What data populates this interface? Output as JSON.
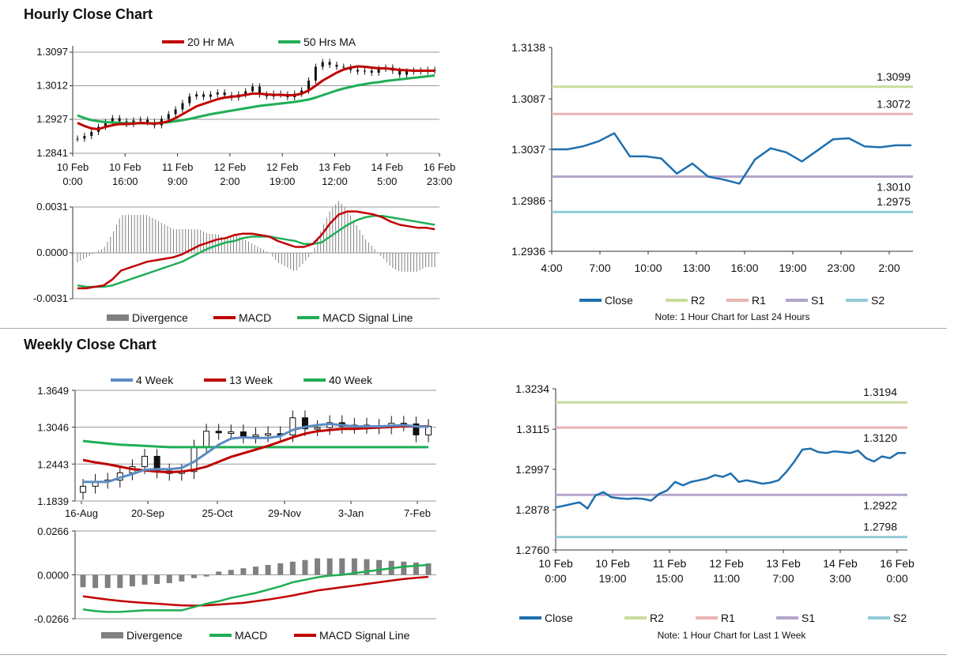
{
  "titles": {
    "hourly": "Hourly Close Chart",
    "weekly": "Weekly Close Chart"
  },
  "colors": {
    "ma20": "#c00000",
    "ma50": "#1fae55",
    "w4": "#5b8cc4",
    "w13": "#c00000",
    "w40": "#1fae55",
    "close": "#1f6fae",
    "r2": "#c8dc9a",
    "r1": "#eab3b3",
    "s1": "#b3a5cc",
    "s2": "#92cbd8",
    "div": "#808080",
    "macd_h": "#c00000",
    "sig_h": "#1fae55",
    "macd_w": "#1fae55",
    "sig_w": "#c00000",
    "grid": "#9a9a9a"
  },
  "chart_data": [
    {
      "id": "hourly_price",
      "type": "candlestick",
      "legend": [
        "20 Hr MA",
        "50 Hrs MA"
      ],
      "yticks": [
        "1.3097",
        "1.3012",
        "1.2927",
        "1.2841"
      ],
      "ylim": [
        1.2841,
        1.3097
      ],
      "xticks": [
        [
          "10 Feb",
          "0:00"
        ],
        [
          "10 Feb",
          "16:00"
        ],
        [
          "11 Feb",
          "9:00"
        ],
        [
          "12 Feb",
          "2:00"
        ],
        [
          "12 Feb",
          "19:00"
        ],
        [
          "13 Feb",
          "12:00"
        ],
        [
          "14 Feb",
          "5:00"
        ],
        [
          "16 Feb",
          "23:00"
        ]
      ],
      "close": [
        1.2878,
        1.2885,
        1.2895,
        1.2908,
        1.292,
        1.293,
        1.2922,
        1.2915,
        1.2924,
        1.2926,
        1.292,
        1.2912,
        1.2928,
        1.294,
        1.2952,
        1.2968,
        1.2985,
        1.299,
        1.2984,
        1.299,
        1.2995,
        1.2988,
        1.2982,
        1.299,
        1.2998,
        1.301,
        1.299,
        1.2985,
        1.2992,
        1.299,
        1.2983,
        1.2992,
        1.3,
        1.3025,
        1.306,
        1.3072,
        1.3065,
        1.306,
        1.3058,
        1.3052,
        1.3048,
        1.305,
        1.3045,
        1.3055,
        1.3058,
        1.305,
        1.304,
        1.3048,
        1.305,
        1.3048,
        1.3052,
        1.305
      ],
      "ma20": [
        1.2918,
        1.291,
        1.2904,
        1.2902,
        1.2908,
        1.2912,
        1.2915,
        1.2915,
        1.2916,
        1.2918,
        1.2917,
        1.2916,
        1.2918,
        1.2922,
        1.293,
        1.294,
        1.295,
        1.296,
        1.2966,
        1.2972,
        1.2978,
        1.2982,
        1.2984,
        1.2986,
        1.2989,
        1.2992,
        1.2992,
        1.299,
        1.2989,
        1.2989,
        1.2988,
        1.2988,
        1.2992,
        1.3,
        1.3012,
        1.3025,
        1.3035,
        1.3045,
        1.3053,
        1.3058,
        1.3061,
        1.306,
        1.3058,
        1.3056,
        1.3056,
        1.3054,
        1.3052,
        1.3051,
        1.305,
        1.305,
        1.305,
        1.305
      ],
      "ma50": [
        1.2937,
        1.293,
        1.2925,
        1.2922,
        1.292,
        1.2919,
        1.2918,
        1.2917,
        1.2917,
        1.2917,
        1.2917,
        1.2917,
        1.2918,
        1.292,
        1.2922,
        1.2925,
        1.2928,
        1.2932,
        1.2936,
        1.294,
        1.2943,
        1.2946,
        1.2949,
        1.2952,
        1.2955,
        1.2958,
        1.2961,
        1.2963,
        1.2965,
        1.2967,
        1.2969,
        1.2971,
        1.2974,
        1.2977,
        1.2982,
        1.2988,
        1.2994,
        1.3,
        1.3005,
        1.3009,
        1.3013,
        1.3016,
        1.3019,
        1.3021,
        1.3024,
        1.3026,
        1.3028,
        1.303,
        1.3032,
        1.3034,
        1.3036,
        1.3038
      ]
    },
    {
      "id": "hourly_macd",
      "type": "bar+line",
      "legend": [
        "Divergence",
        "MACD",
        "MACD Signal Line"
      ],
      "yticks": [
        "0.0031",
        "0.0000",
        "-0.0031"
      ],
      "ylim": [
        -0.0031,
        0.0031
      ],
      "macd": [
        -0.0024,
        -0.0024,
        -0.0023,
        -0.0022,
        -0.0018,
        -0.0012,
        -0.001,
        -0.0008,
        -0.0006,
        -0.0005,
        -0.0004,
        -0.0003,
        -0.0001,
        0.0002,
        0.0005,
        0.0007,
        0.0009,
        0.001,
        0.0012,
        0.0013,
        0.0013,
        0.0012,
        0.0011,
        0.0008,
        0.0006,
        0.0004,
        0.0004,
        0.0006,
        0.0012,
        0.002,
        0.0026,
        0.0028,
        0.0028,
        0.0027,
        0.0026,
        0.0024,
        0.0021,
        0.0019,
        0.0018,
        0.0017,
        0.0017,
        0.0016
      ],
      "signal": [
        -0.0022,
        -0.0023,
        -0.0023,
        -0.0023,
        -0.0022,
        -0.002,
        -0.0018,
        -0.0016,
        -0.0014,
        -0.0012,
        -0.001,
        -0.0008,
        -0.0006,
        -0.0003,
        0.0,
        0.0003,
        0.0005,
        0.0007,
        0.0008,
        0.001,
        0.0011,
        0.0011,
        0.0011,
        0.001,
        0.0009,
        0.0008,
        0.0006,
        0.0006,
        0.0007,
        0.0011,
        0.0015,
        0.0019,
        0.0022,
        0.0024,
        0.0025,
        0.0025,
        0.0024,
        0.0023,
        0.0022,
        0.0021,
        0.002,
        0.0019
      ]
    },
    {
      "id": "hourly_close",
      "type": "line",
      "legend": [
        "Close",
        "R2",
        "R1",
        "S1",
        "S2"
      ],
      "note": "Note: 1 Hour Chart for Last 24 Hours",
      "yticks": [
        "1.3138",
        "1.3087",
        "1.3037",
        "1.2986",
        "1.2936"
      ],
      "ylim": [
        1.2936,
        1.3138
      ],
      "xticks": [
        "4:00",
        "7:00",
        "10:00",
        "13:00",
        "16:00",
        "19:00",
        "23:00",
        "2:00"
      ],
      "close": [
        1.3037,
        1.3037,
        1.304,
        1.3045,
        1.3053,
        1.303,
        1.303,
        1.3028,
        1.3013,
        1.3023,
        1.301,
        1.3007,
        1.3003,
        1.3027,
        1.3038,
        1.3034,
        1.3025,
        1.3036,
        1.3047,
        1.3048,
        1.304,
        1.3039,
        1.3041,
        1.3041
      ],
      "levels": {
        "R2": "1.3099",
        "R1": "1.3072",
        "S1": "1.3010",
        "S2": "1.2975"
      }
    },
    {
      "id": "weekly_price",
      "type": "candlestick",
      "legend": [
        "4 Week",
        "13 Week",
        "40 Week"
      ],
      "yticks": [
        "1.3649",
        "1.3046",
        "1.2443",
        "1.1839"
      ],
      "ylim": [
        1.1839,
        1.3649
      ],
      "xticks": [
        "16-Aug",
        "20-Sep",
        "25-Oct",
        "29-Nov",
        "3-Jan",
        "7-Feb"
      ],
      "close": [
        1.208,
        1.216,
        1.218,
        1.23,
        1.24,
        1.257,
        1.233,
        1.229,
        1.232,
        1.272,
        1.298,
        1.296,
        1.297,
        1.29,
        1.292,
        1.294,
        1.292,
        1.32,
        1.302,
        1.304,
        1.312,
        1.306,
        1.308,
        1.306,
        1.305,
        1.311,
        1.31,
        1.292,
        1.306
      ],
      "w4": [
        1.215,
        1.215,
        1.215,
        1.222,
        1.228,
        1.235,
        1.236,
        1.236,
        1.238,
        1.248,
        1.262,
        1.276,
        1.286,
        1.288,
        1.287,
        1.287,
        1.29,
        1.3,
        1.305,
        1.308,
        1.31,
        1.308,
        1.306,
        1.306,
        1.306,
        1.307,
        1.308,
        1.306,
        1.305
      ],
      "w13": [
        1.251,
        1.247,
        1.244,
        1.24,
        1.236,
        1.234,
        1.232,
        1.231,
        1.232,
        1.235,
        1.24,
        1.248,
        1.256,
        1.262,
        1.268,
        1.274,
        1.281,
        1.288,
        1.294,
        1.298,
        1.3,
        1.302,
        1.302,
        1.303,
        1.304,
        1.305,
        1.306,
        1.306,
        1.306
      ],
      "w40": [
        1.282,
        1.28,
        1.278,
        1.276,
        1.275,
        1.274,
        1.273,
        1.272,
        1.272,
        1.272,
        1.272,
        1.272,
        1.272,
        1.272,
        1.272,
        1.272,
        1.272,
        1.272,
        1.272,
        1.272,
        1.272,
        1.272,
        1.272,
        1.272,
        1.272,
        1.272,
        1.272,
        1.272,
        1.272
      ]
    },
    {
      "id": "weekly_macd",
      "type": "bar+line",
      "legend": [
        "Divergence",
        "MACD",
        "MACD Signal Line"
      ],
      "yticks": [
        "0.0266",
        "0.0000",
        "-0.0266"
      ],
      "ylim": [
        -0.0266,
        0.0266
      ],
      "div": [
        -0.0075,
        -0.008,
        -0.008,
        -0.008,
        -0.007,
        -0.006,
        -0.0055,
        -0.005,
        -0.004,
        -0.002,
        -0.001,
        0.002,
        0.003,
        0.004,
        0.005,
        0.006,
        0.007,
        0.008,
        0.009,
        0.01,
        0.01,
        0.01,
        0.01,
        0.0095,
        0.009,
        0.0085,
        0.008,
        0.0075,
        0.007
      ],
      "macd": [
        -0.021,
        -0.022,
        -0.0225,
        -0.0225,
        -0.022,
        -0.0215,
        -0.0215,
        -0.0215,
        -0.0215,
        -0.0195,
        -0.0175,
        -0.016,
        -0.014,
        -0.0125,
        -0.011,
        -0.009,
        -0.007,
        -0.0045,
        -0.003,
        -0.0015,
        -0.0005,
        0.0,
        0.001,
        0.002,
        0.003,
        0.004,
        0.005,
        0.0055,
        0.006
      ],
      "signal": [
        -0.013,
        -0.014,
        -0.015,
        -0.0158,
        -0.0165,
        -0.017,
        -0.0175,
        -0.018,
        -0.0185,
        -0.0187,
        -0.0185,
        -0.018,
        -0.0175,
        -0.017,
        -0.016,
        -0.015,
        -0.0138,
        -0.0125,
        -0.011,
        -0.0095,
        -0.0085,
        -0.0075,
        -0.0065,
        -0.0055,
        -0.0045,
        -0.0035,
        -0.0025,
        -0.0018,
        -0.0012
      ]
    },
    {
      "id": "weekly_close",
      "type": "line",
      "legend": [
        "Close",
        "R2",
        "R1",
        "S1",
        "S2"
      ],
      "note": "Note: 1 Hour Chart for Last 1 Week",
      "yticks": [
        "1.3234",
        "1.3115",
        "1.2997",
        "1.2878",
        "1.2760"
      ],
      "ylim": [
        1.276,
        1.3234
      ],
      "xticks": [
        [
          "10 Feb",
          "0:00"
        ],
        [
          "10 Feb",
          "19:00"
        ],
        [
          "11 Feb",
          "15:00"
        ],
        [
          "12 Feb",
          "11:00"
        ],
        [
          "13 Feb",
          "7:00"
        ],
        [
          "14 Feb",
          "3:00"
        ],
        [
          "16 Feb",
          "0:00"
        ]
      ],
      "close": [
        1.2885,
        1.289,
        1.2895,
        1.29,
        1.2882,
        1.292,
        1.293,
        1.2915,
        1.2912,
        1.291,
        1.2912,
        1.291,
        1.2905,
        1.2925,
        1.2935,
        1.296,
        1.295,
        1.296,
        1.2965,
        1.297,
        1.298,
        1.2975,
        1.2985,
        1.296,
        1.2965,
        1.296,
        1.2955,
        1.2958,
        1.2965,
        1.299,
        1.302,
        1.3055,
        1.3058,
        1.3048,
        1.3045,
        1.305,
        1.3048,
        1.3045,
        1.3052,
        1.303,
        1.302,
        1.3035,
        1.303,
        1.3045,
        1.3045
      ],
      "levels": {
        "R2": "1.3194",
        "R1": "1.3120",
        "S1": "1.2922",
        "S2": "1.2798"
      }
    }
  ]
}
